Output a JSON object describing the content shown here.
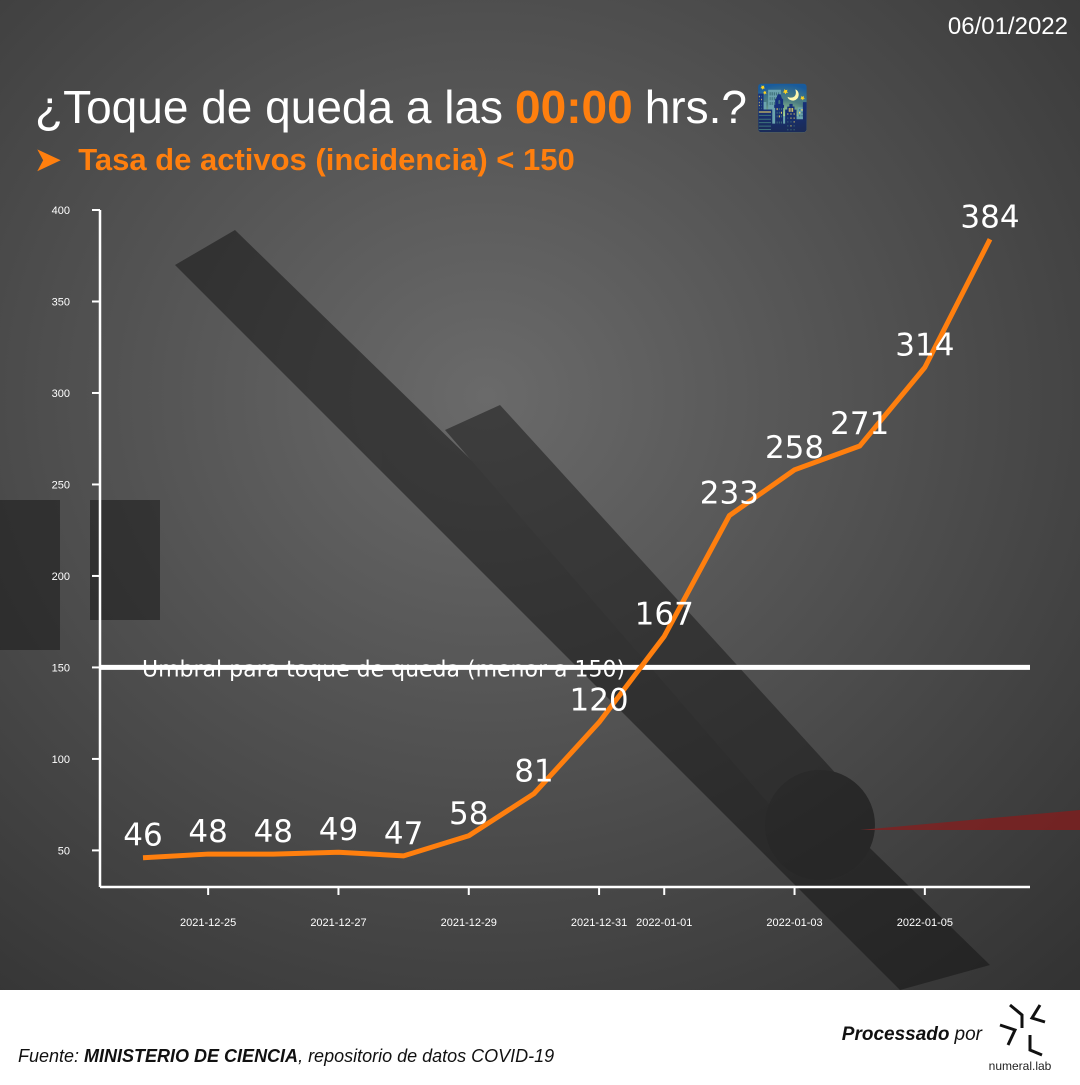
{
  "date": "06/01/2022",
  "title": {
    "part1": "¿Toque de queda a las",
    "highlight": "00:00",
    "part2": "hrs.?",
    "emoji": "🌃"
  },
  "subtitle": "➤  Tasa de activos (incidencia) < 150",
  "chart_data": {
    "type": "line",
    "x": [
      "2021-12-24",
      "2021-12-25",
      "2021-12-26",
      "2021-12-27",
      "2021-12-28",
      "2021-12-29",
      "2021-12-30",
      "2021-12-31",
      "2022-01-01",
      "2022-01-02",
      "2022-01-03",
      "2022-01-04",
      "2022-01-05",
      "2022-01-06"
    ],
    "values": [
      46,
      48,
      48,
      49,
      47,
      58,
      81,
      120,
      167,
      233,
      258,
      271,
      314,
      384
    ],
    "color": "#ff7f0e",
    "xticks": [
      "2021-12-25",
      "2021-12-27",
      "2021-12-29",
      "2021-12-31",
      "2022-01-01",
      "2022-01-03",
      "2022-01-05"
    ],
    "ylim": [
      30,
      400
    ],
    "yticks": [
      50,
      100,
      150,
      200,
      250,
      300,
      350,
      400
    ],
    "threshold": {
      "value": 150,
      "label": "Umbral para toque de queda (menor a 150)"
    }
  },
  "footer": {
    "source_prefix": "Fuente:",
    "source_org": "MINISTERIO DE CIENCIA",
    "source_rest": ", repositorio de datos COVID-19",
    "processed": "Processado",
    "by": "por",
    "brand": "numeral.lab"
  }
}
